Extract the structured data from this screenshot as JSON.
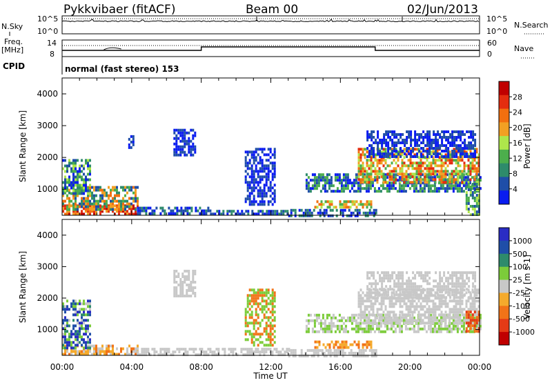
{
  "header": {
    "station": "Pykkvibaer (fitACF)",
    "beam": "Beam 00",
    "date": "02/Jun/2013"
  },
  "panels": {
    "nsky_label": "N.Sky",
    "nsky_ticks": [
      "10^5",
      "10^0"
    ],
    "nsearch_label": "N.Search",
    "nsearch_ticks": [
      "10^5",
      "10^0"
    ],
    "freq_label_1": "Freq.",
    "freq_label_2": "[MHz]",
    "freq_ticks": [
      "14",
      "8"
    ],
    "nave_label": "Nave",
    "nave_ticks": [
      "60",
      "0"
    ],
    "cpid_label": "CPID",
    "cpid_text": "normal (fast stereo) 153"
  },
  "colors": {
    "power": [
      "#0a1cf0",
      "#1f4ea8",
      "#2e8b6b",
      "#4cae4c",
      "#aee64b",
      "#f2a023",
      "#f26f0f",
      "#e42d0f",
      "#c00000"
    ],
    "velocity": [
      "#2a2cc4",
      "#1f4ea8",
      "#2e8b6b",
      "#7ccc3a",
      "#c8c8c8",
      "#f5aa2c",
      "#f27318",
      "#e43b16",
      "#c00000"
    ],
    "ground": "#c8c8c8"
  },
  "chart_data": [
    {
      "type": "heatmap",
      "name": "power",
      "ylabel": "Slant Range [km]",
      "xlabel": "Time UT",
      "x_ticks": [
        "00:00",
        "04:00",
        "08:00",
        "12:00",
        "16:00",
        "20:00",
        "00:00"
      ],
      "x_range_hours": [
        0,
        24
      ],
      "y_range": [
        180,
        4500
      ],
      "y_ticks": [
        1000,
        2000,
        3000,
        4000
      ],
      "colorbar": {
        "label": "Power [dB]",
        "ticks": [
          "4",
          "8",
          "12",
          "16",
          "20",
          "24",
          "28"
        ],
        "range": [
          0,
          30
        ]
      },
      "echo_regions": [
        {
          "t": [
            0.0,
            4.3
          ],
          "r": [
            190,
            520
          ],
          "levels": [
            6,
            7,
            8,
            7,
            5
          ]
        },
        {
          "t": [
            0.0,
            4.3
          ],
          "r": [
            400,
            1100
          ],
          "levels": [
            1,
            2,
            3,
            5,
            6
          ]
        },
        {
          "t": [
            0.0,
            1.6
          ],
          "r": [
            900,
            1950
          ],
          "levels": [
            0,
            1,
            2,
            3,
            4
          ]
        },
        {
          "t": [
            4.3,
            8.5
          ],
          "r": [
            190,
            450
          ],
          "levels": [
            0,
            1,
            2
          ]
        },
        {
          "t": [
            8.5,
            13.0
          ],
          "r": [
            190,
            350
          ],
          "levels": [
            0,
            1,
            2
          ]
        },
        {
          "t": [
            13.0,
            18.0
          ],
          "r": [
            190,
            380
          ],
          "levels": [
            0,
            1,
            2
          ]
        },
        {
          "t": [
            14.5,
            17.8
          ],
          "r": [
            420,
            650
          ],
          "levels": [
            3,
            4,
            5,
            6
          ]
        },
        {
          "t": [
            14.0,
            24.0
          ],
          "r": [
            900,
            1500
          ],
          "levels": [
            0,
            1,
            2,
            3
          ]
        },
        {
          "t": [
            17.0,
            24.0
          ],
          "r": [
            1200,
            2300
          ],
          "levels": [
            3,
            4,
            5,
            6,
            7
          ]
        },
        {
          "t": [
            17.5,
            23.8
          ],
          "r": [
            2000,
            2850
          ],
          "levels": [
            0,
            1
          ]
        },
        {
          "t": [
            3.8,
            4.1
          ],
          "r": [
            2300,
            2700
          ],
          "levels": [
            0,
            1
          ]
        },
        {
          "t": [
            6.4,
            7.6
          ],
          "r": [
            2100,
            2900
          ],
          "levels": [
            0,
            1
          ]
        },
        {
          "t": [
            10.5,
            12.2
          ],
          "r": [
            500,
            2300
          ],
          "levels": [
            0,
            1
          ]
        },
        {
          "t": [
            23.2,
            24.0
          ],
          "r": [
            190,
            1200
          ],
          "levels": [
            1,
            2,
            3,
            4
          ]
        }
      ]
    },
    {
      "type": "heatmap",
      "name": "velocity",
      "ylabel": "Slant Range [km]",
      "xlabel": "Time UT",
      "x_ticks": [
        "00:00",
        "04:00",
        "08:00",
        "12:00",
        "16:00",
        "20:00",
        "00:00"
      ],
      "x_range_hours": [
        0,
        24
      ],
      "y_range": [
        180,
        4500
      ],
      "y_ticks": [
        1000,
        2000,
        3000,
        4000
      ],
      "colorbar": {
        "label": "Velocity [m s-1]",
        "ticks": [
          "1000",
          "500",
          "100",
          "25",
          "-25",
          "-100",
          "-500",
          "-1000"
        ],
        "range": [
          -1200,
          1200
        ]
      },
      "echo_regions": [
        {
          "t": [
            0.0,
            4.3
          ],
          "r": [
            190,
            520
          ],
          "levels": [
            4,
            4,
            5,
            5,
            6
          ]
        },
        {
          "t": [
            0.0,
            1.6
          ],
          "r": [
            400,
            1950
          ],
          "levels": [
            0,
            1,
            2,
            3,
            4
          ]
        },
        {
          "t": [
            4.3,
            13.0
          ],
          "r": [
            190,
            420
          ],
          "levels": [
            4
          ]
        },
        {
          "t": [
            13.0,
            18.0
          ],
          "r": [
            190,
            380
          ],
          "levels": [
            4
          ]
        },
        {
          "t": [
            14.5,
            17.8
          ],
          "r": [
            420,
            650
          ],
          "levels": [
            5,
            6
          ]
        },
        {
          "t": [
            14.0,
            24.0
          ],
          "r": [
            900,
            1500
          ],
          "levels": [
            4,
            3
          ]
        },
        {
          "t": [
            17.0,
            24.0
          ],
          "r": [
            1200,
            2300
          ],
          "levels": [
            4
          ]
        },
        {
          "t": [
            17.5,
            23.8
          ],
          "r": [
            2000,
            2850
          ],
          "levels": [
            4
          ]
        },
        {
          "t": [
            6.4,
            7.6
          ],
          "r": [
            2100,
            2900
          ],
          "levels": [
            4
          ]
        },
        {
          "t": [
            10.5,
            12.2
          ],
          "r": [
            500,
            2300
          ],
          "levels": [
            3,
            6
          ]
        },
        {
          "t": [
            23.2,
            24.0
          ],
          "r": [
            900,
            1600
          ],
          "levels": [
            6,
            7
          ]
        }
      ]
    }
  ]
}
